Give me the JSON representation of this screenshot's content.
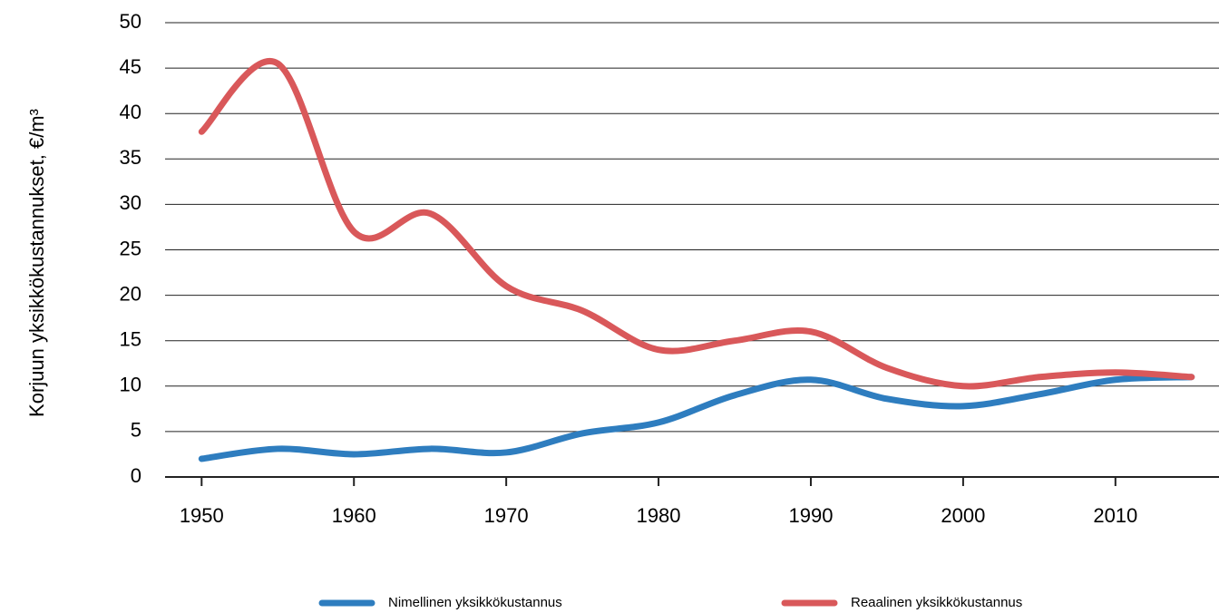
{
  "chart_data": {
    "type": "line",
    "y_label": "Korjuun  yksikkökustannukset, €/m³",
    "x": [
      1950,
      1955,
      1960,
      1965,
      1970,
      1975,
      1980,
      1985,
      1990,
      1995,
      2000,
      2005,
      2010,
      2015
    ],
    "series": [
      {
        "name": "Nimellinen yksikkökustannus",
        "color": "#2e7dbf",
        "values": [
          2,
          3.1,
          2.5,
          3.1,
          2.7,
          4.8,
          6,
          9,
          10.7,
          8.6,
          7.8,
          9.1,
          10.7,
          11
        ]
      },
      {
        "name": "Reaalinen yksikkökustannus",
        "color": "#d9585a",
        "values": [
          38,
          45.5,
          27,
          29,
          21,
          18.3,
          14,
          15,
          16,
          12,
          10,
          11,
          11.5,
          11
        ]
      }
    ],
    "xlim": [
      1947.6,
      2016.8
    ],
    "xticks": [
      1950,
      1960,
      1970,
      1980,
      1990,
      2000,
      2010
    ],
    "ylim": [
      0,
      50
    ],
    "yticks": [
      0,
      5,
      10,
      15,
      20,
      25,
      30,
      35,
      40,
      45,
      50
    ],
    "grid": true,
    "legend": "bottom"
  }
}
